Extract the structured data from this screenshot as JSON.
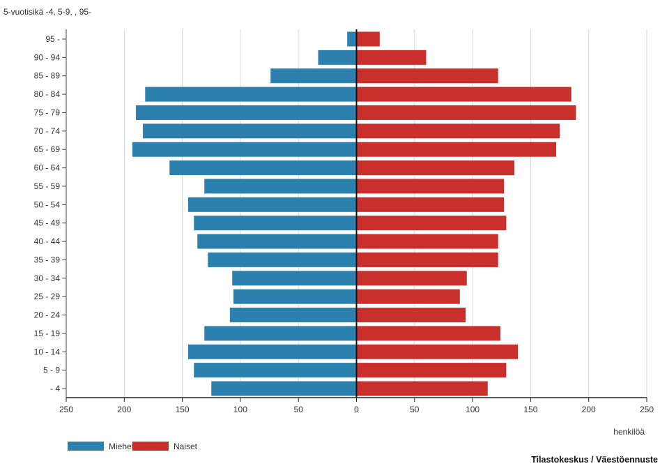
{
  "source": "Tilastokeskus / Väestöennuste",
  "chart_data": {
    "type": "bar",
    "orientation": "horizontal",
    "layout": "population-pyramid",
    "ylabel": "5-vuotisikä -4, 5-9, , 95-",
    "xlabel": "henkilöä",
    "categories": [
      "95 -",
      "90 - 94",
      "85 - 89",
      "80 - 84",
      "75 - 79",
      "70 - 74",
      "65 - 69",
      "60 - 64",
      "55 - 59",
      "50 - 54",
      "45 - 49",
      "40 - 44",
      "35 - 39",
      "30 - 34",
      "25 - 29",
      "20 - 24",
      "15 - 19",
      "10 - 14",
      "5 - 9",
      "- 4"
    ],
    "series": [
      {
        "name": "Miehet",
        "side": "left",
        "color": "#2b80ad",
        "values": [
          8,
          33,
          74,
          182,
          190,
          184,
          193,
          161,
          131,
          145,
          140,
          137,
          128,
          107,
          106,
          109,
          131,
          145,
          140,
          125
        ]
      },
      {
        "name": "Naiset",
        "side": "right",
        "color": "#c9302c",
        "values": [
          20,
          60,
          122,
          185,
          189,
          175,
          172,
          136,
          127,
          127,
          129,
          122,
          122,
          95,
          89,
          94,
          124,
          139,
          129,
          113
        ]
      }
    ],
    "xlim": [
      -250,
      250
    ],
    "x_ticks": [
      -250,
      -200,
      -150,
      -100,
      -50,
      0,
      50,
      100,
      150,
      200,
      250
    ],
    "x_tick_labels": [
      "250",
      "200",
      "150",
      "100",
      "50",
      "0",
      "50",
      "100",
      "150",
      "200",
      "250"
    ],
    "grid": true,
    "legend": "bottom-left"
  }
}
